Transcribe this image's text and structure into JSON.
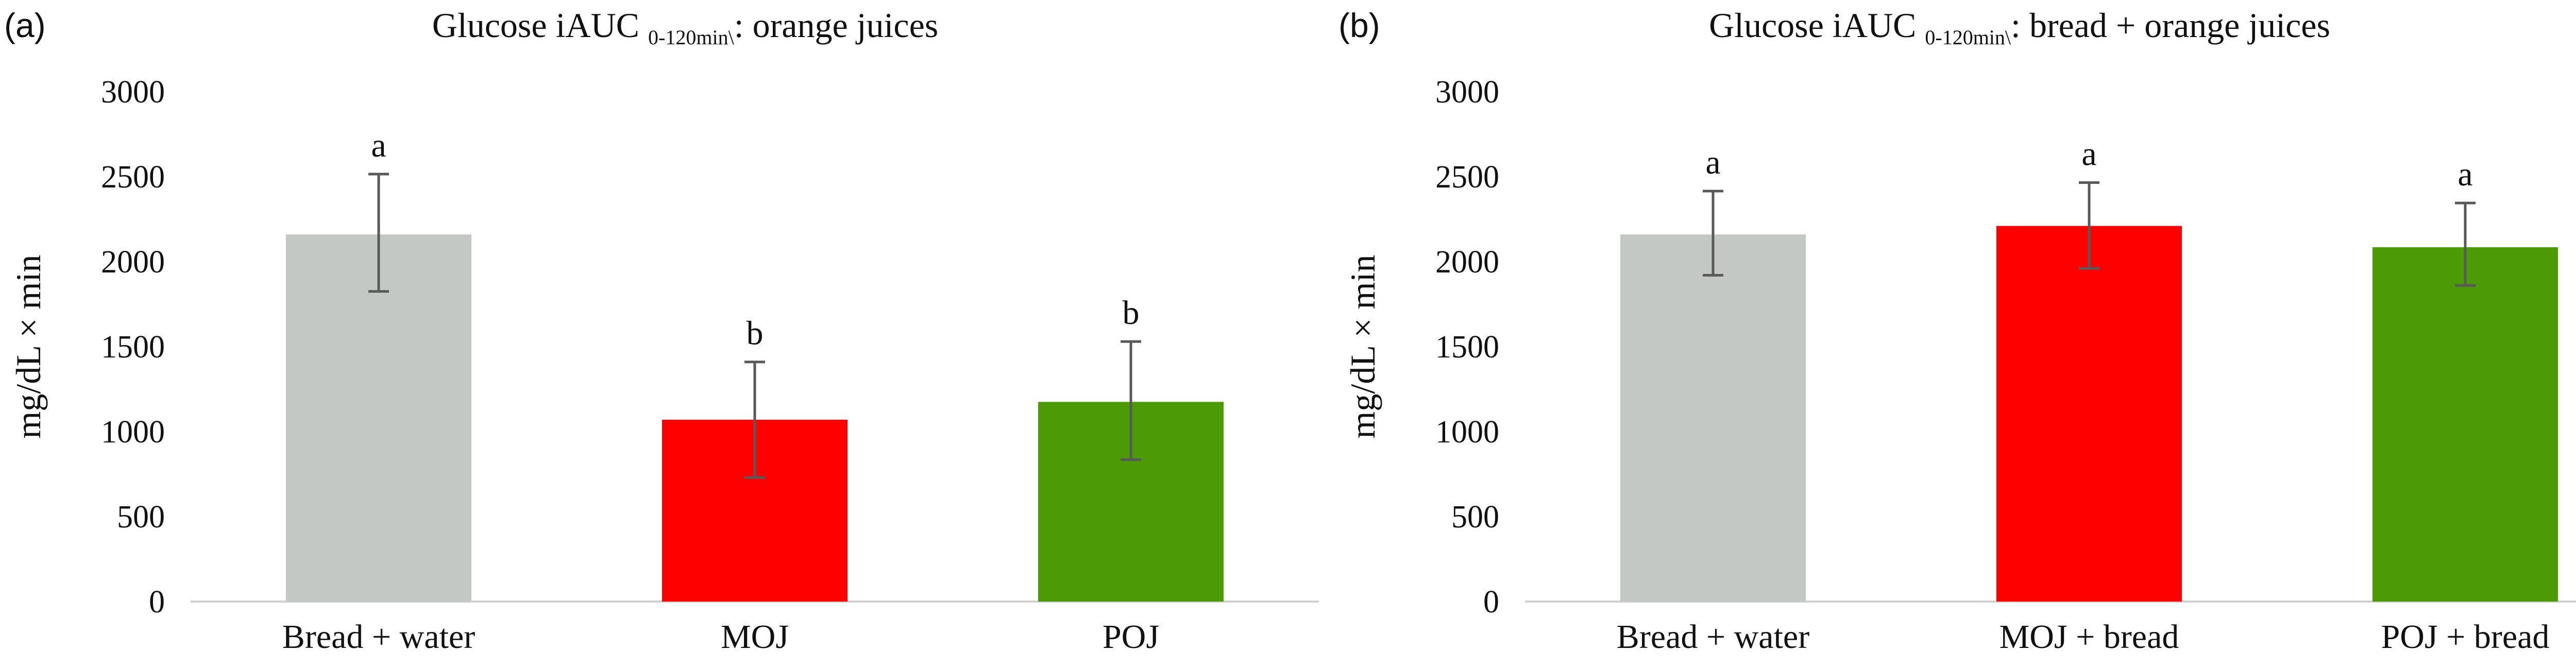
{
  "chart_data": [
    {
      "type": "bar",
      "panel_label": "(a)",
      "title": {
        "main": "Glucose iAUC",
        "subscript": "0-120min\\",
        "suffix": ": orange juices"
      },
      "ylabel": "mg/dL × min",
      "ylim": [
        0,
        3000
      ],
      "yticks": [
        "0",
        "500",
        "1000",
        "1500",
        "2000",
        "2500",
        "3000"
      ],
      "categories": [
        "Bread + water",
        "MOJ",
        "POJ"
      ],
      "values": [
        2160,
        1070,
        1175
      ],
      "error_low": [
        1825,
        730,
        835
      ],
      "error_high": [
        2515,
        1410,
        1530
      ],
      "significance": [
        "a",
        "b",
        "b"
      ],
      "colors": [
        "#c3c8c4",
        "#ff0000",
        "#4c9a05"
      ],
      "grid": false
    },
    {
      "type": "bar",
      "panel_label": "(b)",
      "title": {
        "main": "Glucose iAUC",
        "subscript": "0-120min\\",
        "suffix": ": bread + orange juices"
      },
      "ylabel": "mg/dL × min",
      "ylim": [
        0,
        3000
      ],
      "yticks": [
        "0",
        "500",
        "1000",
        "1500",
        "2000",
        "2500",
        "3000"
      ],
      "categories": [
        "Bread + water",
        "MOJ + bread",
        "POJ + bread"
      ],
      "values": [
        2160,
        2210,
        2085
      ],
      "error_low": [
        1920,
        1960,
        1860
      ],
      "error_high": [
        2415,
        2465,
        2345
      ],
      "significance": [
        "a",
        "a",
        "a"
      ],
      "colors": [
        "#c3c8c4",
        "#ff0000",
        "#4c9a05"
      ],
      "grid": false
    }
  ]
}
